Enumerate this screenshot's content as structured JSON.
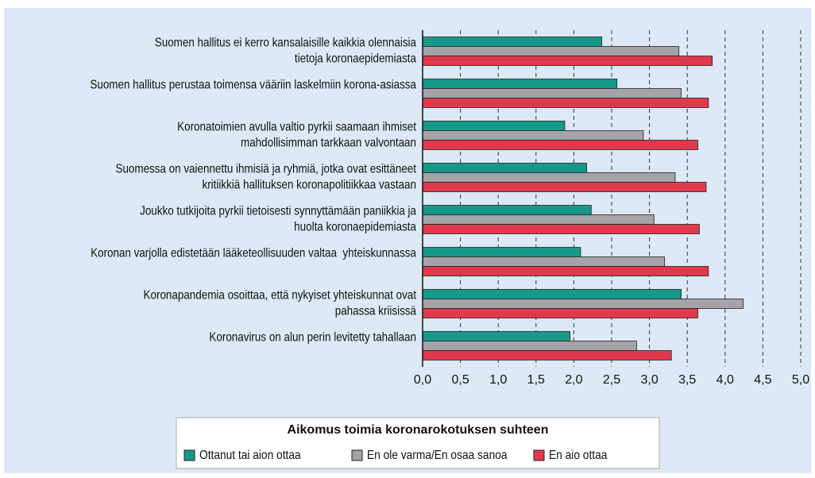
{
  "chart_data": {
    "type": "bar",
    "orientation": "horizontal",
    "categories": [
      [
        "Suomen hallitus ei kerro kansalaisille kaikkia olennaisia",
        "tietoja koronaepidemiasta"
      ],
      [
        "Suomen hallitus perustaa toimensa vääriin laskelmiin korona-asiassa"
      ],
      [
        "Koronatoimien avulla valtio pyrkii saamaan ihmiset",
        "mahdollisimman tarkkaan valvontaan"
      ],
      [
        "Suomessa on vaiennettu ihmisiä ja ryhmiä, jotka ovat esittäneet",
        "kritiikkiä hallituksen koronapolitiikkaa vastaan"
      ],
      [
        "Joukko tutkijoita pyrkii tietoisesti synnyttämään paniikkia ja",
        "huolta koronaepidemiasta"
      ],
      [
        "Koronan varjolla edistetään lääketeollisuuden valtaa  yhteiskunnassa"
      ],
      [
        "Koronapandemia osoittaa, että nykyiset yhteiskunnat ovat",
        "pahassa kriisissä"
      ],
      [
        "Koronavirus on alun perin levitetty tahallaan"
      ]
    ],
    "series": [
      {
        "name": "Ottanut tai aion ottaa",
        "color": "#17998a",
        "values": [
          2.37,
          2.57,
          1.88,
          2.17,
          2.23,
          2.09,
          3.42,
          1.95
        ]
      },
      {
        "name": "En ole varma/En osaa sanoa",
        "color": "#a3a3a8",
        "values": [
          3.39,
          3.42,
          2.92,
          3.34,
          3.06,
          3.2,
          4.24,
          2.83
        ]
      },
      {
        "name": "En aio ottaa",
        "color": "#e0394d",
        "values": [
          3.83,
          3.78,
          3.64,
          3.75,
          3.66,
          3.78,
          3.64,
          3.29
        ]
      }
    ],
    "xlim": [
      0,
      5
    ],
    "xticks": [
      {
        "value": 0,
        "label": "0,0"
      },
      {
        "value": 0.5,
        "label": "0,5"
      },
      {
        "value": 1,
        "label": "1,0"
      },
      {
        "value": 1.5,
        "label": "1,5"
      },
      {
        "value": 2,
        "label": "2,0"
      },
      {
        "value": 2.5,
        "label": "2,5"
      },
      {
        "value": 3,
        "label": "3,0"
      },
      {
        "value": 3.5,
        "label": "3,5"
      },
      {
        "value": 4,
        "label": "4,0"
      },
      {
        "value": 4.5,
        "label": "4,5"
      },
      {
        "value": 5,
        "label": "5,0"
      }
    ],
    "grid": true,
    "legend_title": "Aikomus toimia koronarokotuksen suhteen",
    "legend": "bottom"
  }
}
